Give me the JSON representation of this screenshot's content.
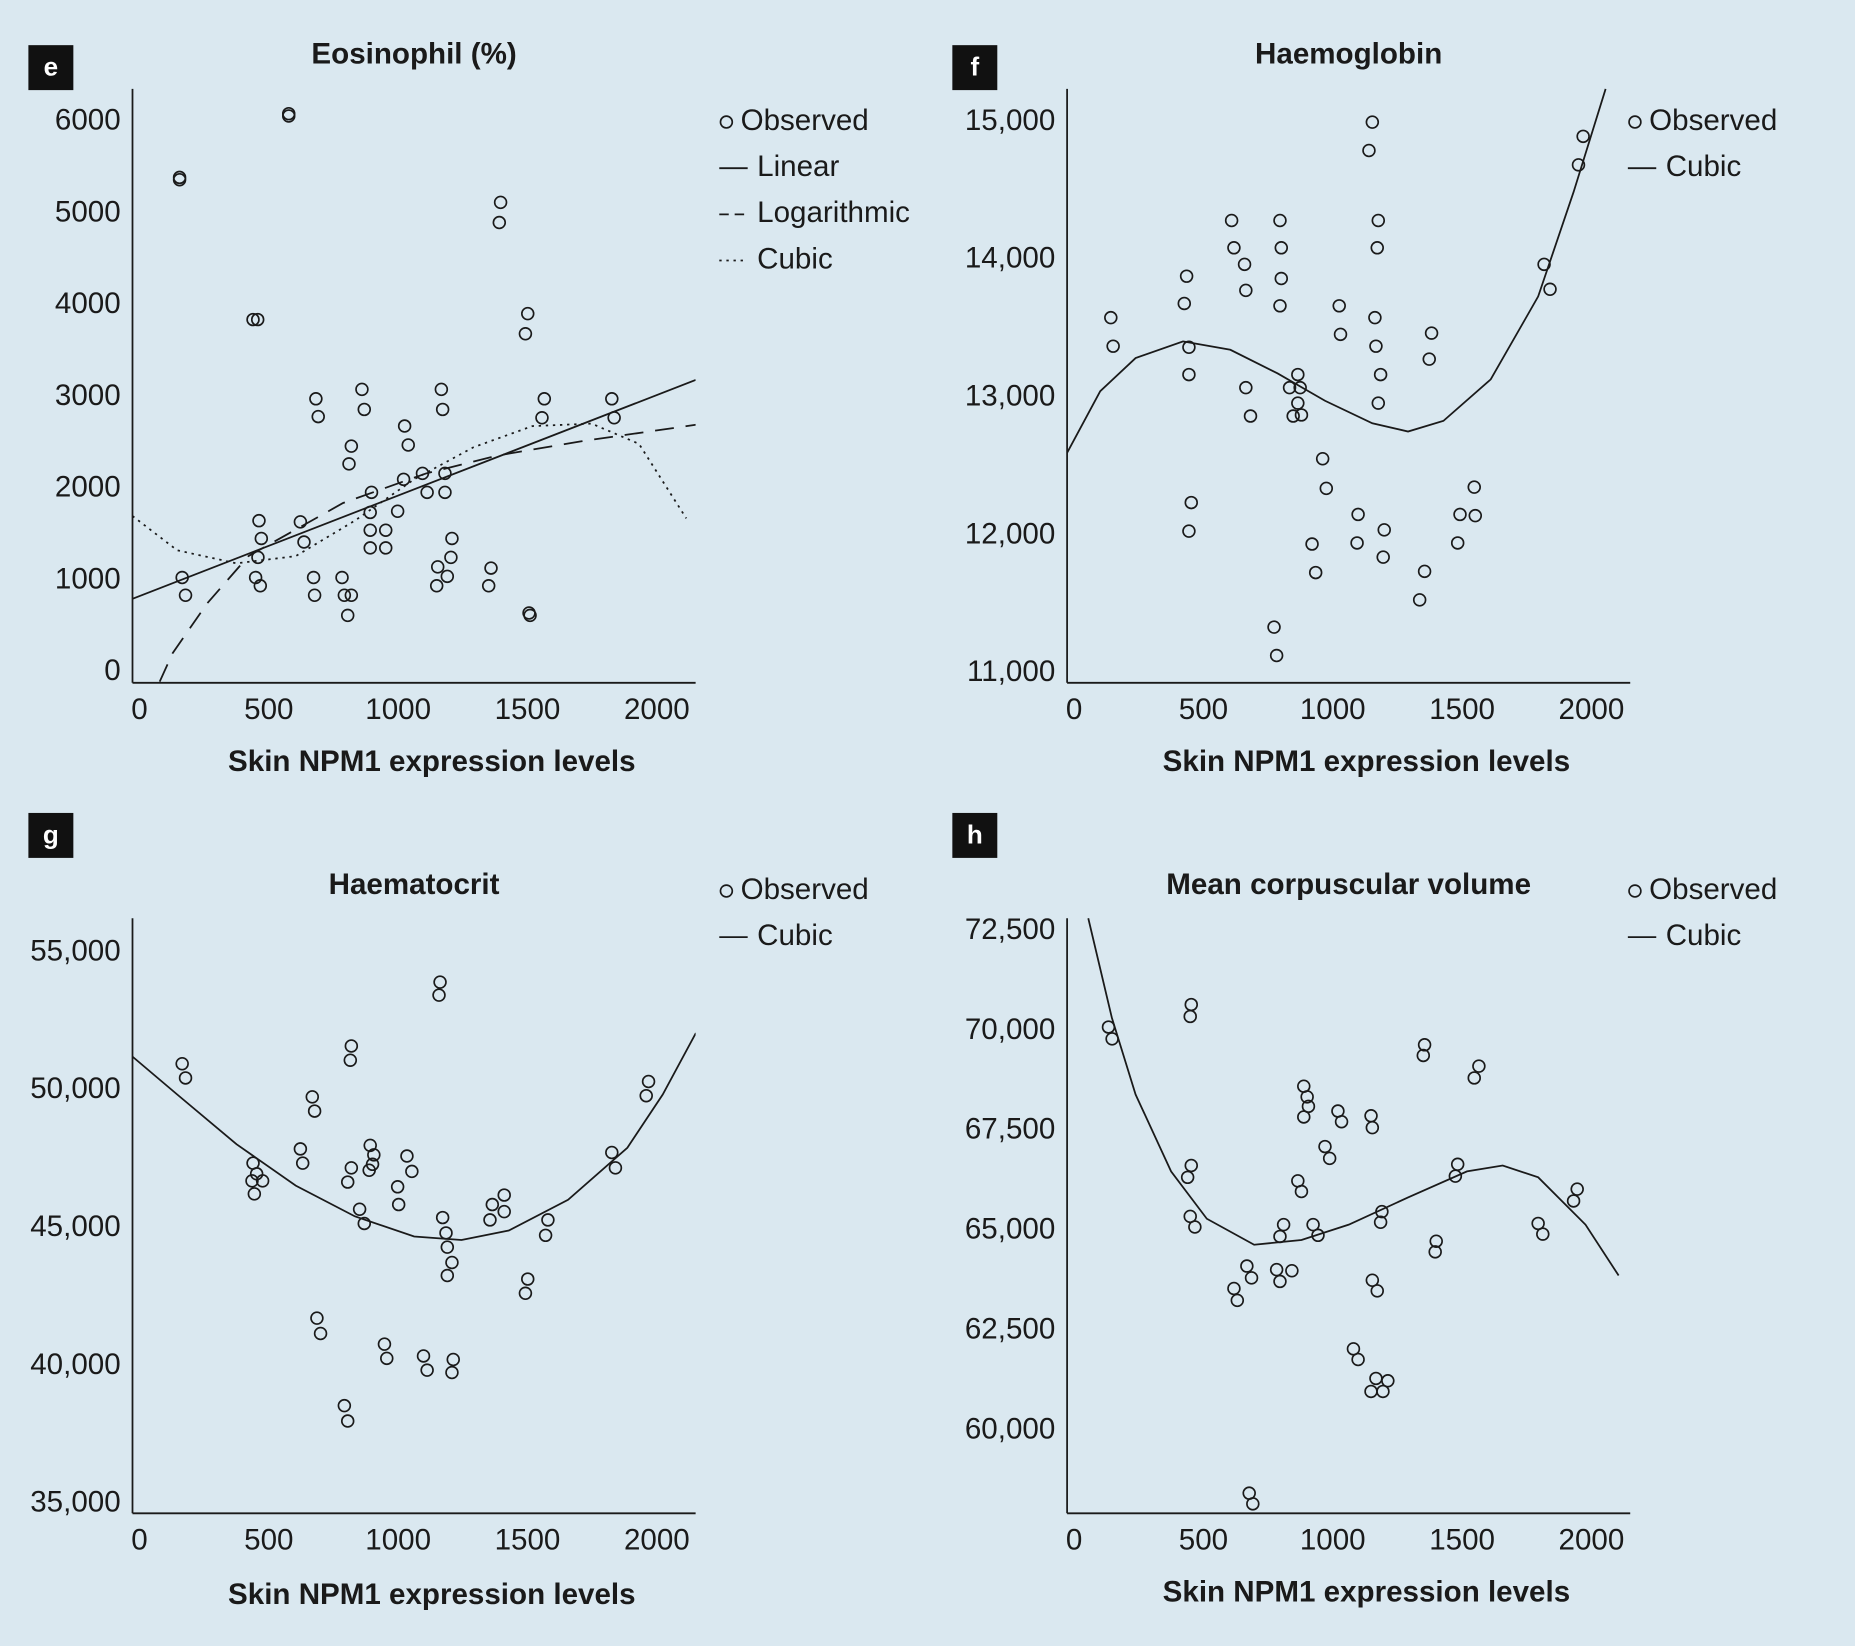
{
  "chart_data": [
    {
      "type": "scatter",
      "panel": "e",
      "title": "Eosinophil (%)",
      "xlabel": "Skin NPM1 expression levels",
      "xlim": [
        -27,
        2150
      ],
      "xticks": [
        0,
        500,
        1000,
        1500,
        2000
      ],
      "ylim": [
        -116,
        6360
      ],
      "yticks": [
        0,
        1000,
        2000,
        3000,
        4000,
        5000,
        6000
      ],
      "series": [
        {
          "name": "Observed",
          "color": "#1a1a1a",
          "marker": "circle",
          "x": [
            155,
            155,
            577,
            577,
            439,
            457,
            165,
            178,
            462,
            471,
            458,
            449,
            467,
            622,
            636,
            682,
            691,
            673,
            677,
            860,
            869,
            819,
            810,
            783,
            792,
            805,
            819,
            897,
            892,
            892,
            892,
            952,
            952,
            998,
            1025,
            1039,
            1021,
            1094,
            1112,
            1167,
            1172,
            1181,
            1181,
            1208,
            1204,
            1190,
            1149,
            1153,
            1359,
            1350,
            1396,
            1391,
            1501,
            1492,
            1506,
            1510,
            1565,
            1556,
            1826,
            1835
          ],
          "values": [
            5395,
            5370,
            6090,
            6065,
            3845,
            3845,
            1032,
            839,
            1652,
            1458,
            1252,
            1032,
            942,
            1639,
            1419,
            2981,
            2787,
            1032,
            839,
            3084,
            2865,
            2465,
            2271,
            1032,
            839,
            619,
            839,
            1961,
            1742,
            1548,
            1355,
            1548,
            1355,
            1755,
            2684,
            2477,
            2103,
            2168,
            1961,
            3084,
            2865,
            2168,
            1961,
            1458,
            1252,
            1045,
            942,
            1148,
            1135,
            942,
            5123,
            4903,
            3910,
            3690,
            645,
            619,
            2981,
            2774,
            2981,
            2774
          ]
        },
        {
          "name": "Linear",
          "color": "#1a1a1a",
          "dash": "solid",
          "x": [
            -27,
            2150
          ],
          "values": [
            800,
            3187
          ]
        },
        {
          "name": "Logarithmic",
          "color": "#1a1a1a",
          "dash": "dashed",
          "x": [
            78,
            128,
            261,
            421,
            787,
            1108,
            1382,
            1703,
            2151
          ],
          "values": [
            -103,
            206,
            748,
            1265,
            1845,
            2168,
            2361,
            2516,
            2697
          ]
        },
        {
          "name": "Cubic",
          "color": "#1a1a1a",
          "dash": "dotted",
          "x": [
            -27,
            146,
            375,
            604,
            833,
            1062,
            1291,
            1519,
            1748,
            1931,
            2114
          ],
          "values": [
            1703,
            1329,
            1187,
            1265,
            1652,
            2103,
            2452,
            2684,
            2710,
            2490,
            1677
          ]
        }
      ]
    },
    {
      "type": "scatter",
      "panel": "f",
      "title": "Haemoglobin",
      "xlabel": "Skin NPM1 expression levels",
      "xlim": [
        -27,
        2150
      ],
      "xticks": [
        0,
        500,
        1000,
        1500,
        2000
      ],
      "ylim": [
        10931,
        15241
      ],
      "yticks": [
        {
          "value": 11000,
          "label": "11,000"
        },
        {
          "value": 12000,
          "label": "12,000"
        },
        {
          "value": 13000,
          "label": "13,000"
        },
        {
          "value": 14000,
          "label": "14,000"
        },
        {
          "value": 15000,
          "label": "15,000"
        }
      ],
      "series": [
        {
          "name": "Observed",
          "color": "#1a1a1a",
          "marker": "circle",
          "x": [
            142,
            151,
            426,
            435,
            444,
            444,
            453,
            444,
            609,
            618,
            659,
            664,
            664,
            682,
            796,
            801,
            801,
            796,
            833,
            847,
            865,
            865,
            879,
            874,
            961,
            975,
            920,
            934,
            773,
            783,
            1025,
            1030,
            1153,
            1140,
            1176,
            1172,
            1163,
            1167,
            1185,
            1176,
            1098,
            1094,
            1199,
            1195,
            1382,
            1373,
            1355,
            1336,
            1492,
            1551,
            1483,
            1547,
            1817,
            1840,
            1968,
            1950
          ],
          "values": [
            13581,
            13374,
            13684,
            13882,
            13366,
            13168,
            12239,
            12032,
            14286,
            14088,
            13968,
            13779,
            13073,
            12867,
            14286,
            14088,
            13865,
            13667,
            13073,
            12867,
            13168,
            12961,
            12875,
            13073,
            12557,
            12342,
            11938,
            11731,
            11335,
            11129,
            13667,
            13460,
            15000,
            14794,
            14286,
            14088,
            13581,
            13374,
            13168,
            12961,
            12153,
            11946,
            12041,
            11843,
            13469,
            13280,
            11740,
            11533,
            12153,
            12144,
            11946,
            12351,
            13968,
            13787,
            14897,
            14690
          ]
        },
        {
          "name": "Cubic",
          "color": "#1a1a1a",
          "dash": "solid",
          "x": [
            -27,
            101,
            238,
            421,
            604,
            787,
            970,
            1153,
            1291,
            1428,
            1611,
            1794,
            1931,
            2055
          ],
          "values": [
            12600,
            13047,
            13288,
            13409,
            13348,
            13176,
            12978,
            12815,
            12755,
            12832,
            13133,
            13735,
            14492,
            15241
          ]
        }
      ]
    },
    {
      "type": "scatter",
      "panel": "g",
      "title": "Haematocrit",
      "xlabel": "Skin NPM1 expression levels",
      "xlim": [
        -27,
        2150
      ],
      "xticks": [
        0,
        500,
        1000,
        1500,
        2000
      ],
      "ylim": [
        34657,
        56245
      ],
      "yticks": [
        {
          "value": 35000,
          "label": "35,000"
        },
        {
          "value": 40000,
          "label": "40,000"
        },
        {
          "value": 45000,
          "label": "45,000"
        },
        {
          "value": 50000,
          "label": "50,000"
        },
        {
          "value": 55000,
          "label": "55,000"
        }
      ],
      "series": [
        {
          "name": "Observed",
          "color": "#1a1a1a",
          "marker": "circle",
          "x": [
            165,
            178,
            439,
            453,
            435,
            444,
            476,
            622,
            631,
            668,
            677,
            686,
            700,
            819,
            815,
            819,
            805,
            851,
            869,
            892,
            906,
            901,
            888,
            792,
            805,
            947,
            956,
            1034,
            1053,
            998,
            1002,
            1098,
            1112,
            1162,
            1158,
            1172,
            1185,
            1190,
            1190,
            1208,
            1213,
            1208,
            1364,
            1355,
            1410,
            1410,
            1501,
            1492,
            1579,
            1570,
            1826,
            1840,
            1968,
            1959
          ],
          "values": [
            50966,
            50451,
            47361,
            46974,
            46717,
            46245,
            46717,
            47876,
            47361,
            49764,
            49249,
            41738,
            41180,
            51609,
            51094,
            47189,
            46674,
            45687,
            45172,
            48004,
            47661,
            47318,
            47103,
            38562,
            38004,
            40794,
            40279,
            47618,
            47060,
            46502,
            45858,
            40365,
            39850,
            53927,
            53455,
            45386,
            44828,
            44313,
            43283,
            43755,
            40236,
            39764,
            45858,
            45300,
            46202,
            45601,
            43155,
            42639,
            45300,
            44742,
            47747,
            47189,
            50322,
            49807
          ]
        },
        {
          "name": "Cubic",
          "color": "#1a1a1a",
          "dash": "solid",
          "x": [
            -27,
            146,
            375,
            604,
            833,
            1062,
            1245,
            1428,
            1657,
            1886,
            2023,
            2151
          ],
          "values": [
            51223,
            49850,
            48047,
            46545,
            45429,
            44700,
            44571,
            44914,
            46030,
            47918,
            49850,
            52082
          ]
        }
      ]
    },
    {
      "type": "scatter",
      "panel": "h",
      "title": "Mean corpuscular volume",
      "xlabel": "Skin NPM1 expression levels",
      "xlim": [
        -27,
        2150
      ],
      "xticks": [
        0,
        500,
        1000,
        1500,
        2000
      ],
      "ylim": [
        57926,
        72826
      ],
      "yticks": [
        {
          "value": 60000,
          "label": "60,000"
        },
        {
          "value": 62500,
          "label": "62,500"
        },
        {
          "value": 65000,
          "label": "65,000"
        },
        {
          "value": 67500,
          "label": "67,500"
        },
        {
          "value": 70000,
          "label": "70,000"
        },
        {
          "value": 72500,
          "label": "72,500"
        }
      ],
      "series": [
        {
          "name": "Observed",
          "color": "#1a1a1a",
          "marker": "circle",
          "x": [
            133,
            147,
            453,
            449,
            453,
            439,
            449,
            467,
            618,
            631,
            668,
            686,
            677,
            691,
            783,
            796,
            842,
            796,
            810,
            865,
            879,
            888,
            901,
            906,
            888,
            924,
            943,
            970,
            988,
            1020,
            1034,
            1148,
            1153,
            1153,
            1172,
            1080,
            1098,
            1167,
            1148,
            1194,
            1213,
            1190,
            1185,
            1355,
            1350,
            1400,
            1396,
            1483,
            1474,
            1565,
            1547,
            1794,
            1812,
            1945,
            1931
          ],
          "values": [
            70101,
            69805,
            70664,
            70367,
            66635,
            66339,
            65361,
            65095,
            63555,
            63258,
            64117,
            63821,
            58430,
            58163,
            64028,
            63732,
            63999,
            64858,
            65154,
            66250,
            65983,
            68620,
            68353,
            68116,
            67850,
            65154,
            64887,
            67109,
            66813,
            67998,
            67731,
            67879,
            67583,
            63762,
            63495,
            62044,
            61777,
            61303,
            60977,
            60977,
            61244,
            65480,
            65213,
            69657,
            69390,
            64739,
            64473,
            66665,
            66369,
            69123,
            68827,
            65184,
            64917,
            66043,
            65747
          ]
        },
        {
          "name": "Cubic",
          "color": "#1a1a1a",
          "dash": "solid",
          "x": [
            55,
            146,
            238,
            375,
            513,
            696,
            879,
            1062,
            1291,
            1519,
            1657,
            1794,
            1977,
            2105
          ],
          "values": [
            72826,
            70338,
            68412,
            66487,
            65302,
            64650,
            64769,
            65154,
            65835,
            66487,
            66635,
            66339,
            65154,
            63880
          ]
        }
      ]
    }
  ]
}
